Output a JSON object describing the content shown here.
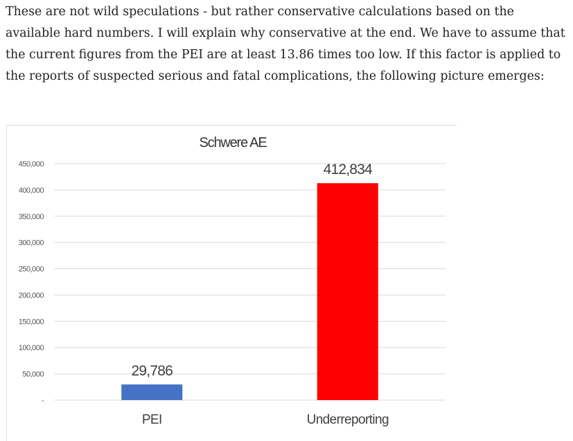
{
  "article": {
    "paragraph": "These are not wild speculations - but rather conservative calculations based on the available hard numbers. I will explain why conservative at the end. We have to assume that the current figures from the PEI are at least 13.86 times too low. If this factor is applied to the reports of suspected serious and fatal complications, the following picture emerges:"
  },
  "chart_data": {
    "type": "bar",
    "title": "Schwere AE",
    "categories": [
      "PEI",
      "Underreporting"
    ],
    "values": [
      29786,
      412834
    ],
    "data_labels": [
      "29,786",
      "412,834"
    ],
    "colors": [
      "#4472c4",
      "#ff0000"
    ],
    "ylim": [
      0,
      450000
    ],
    "yticks": [
      0,
      50000,
      100000,
      150000,
      200000,
      250000,
      300000,
      350000,
      400000,
      450000
    ],
    "ytick_labels": [
      "-",
      "50,000",
      "100,000",
      "150,000",
      "200,000",
      "250,000",
      "300,000",
      "350,000",
      "400,000",
      "450,000"
    ],
    "grid": true,
    "legend": "none"
  }
}
